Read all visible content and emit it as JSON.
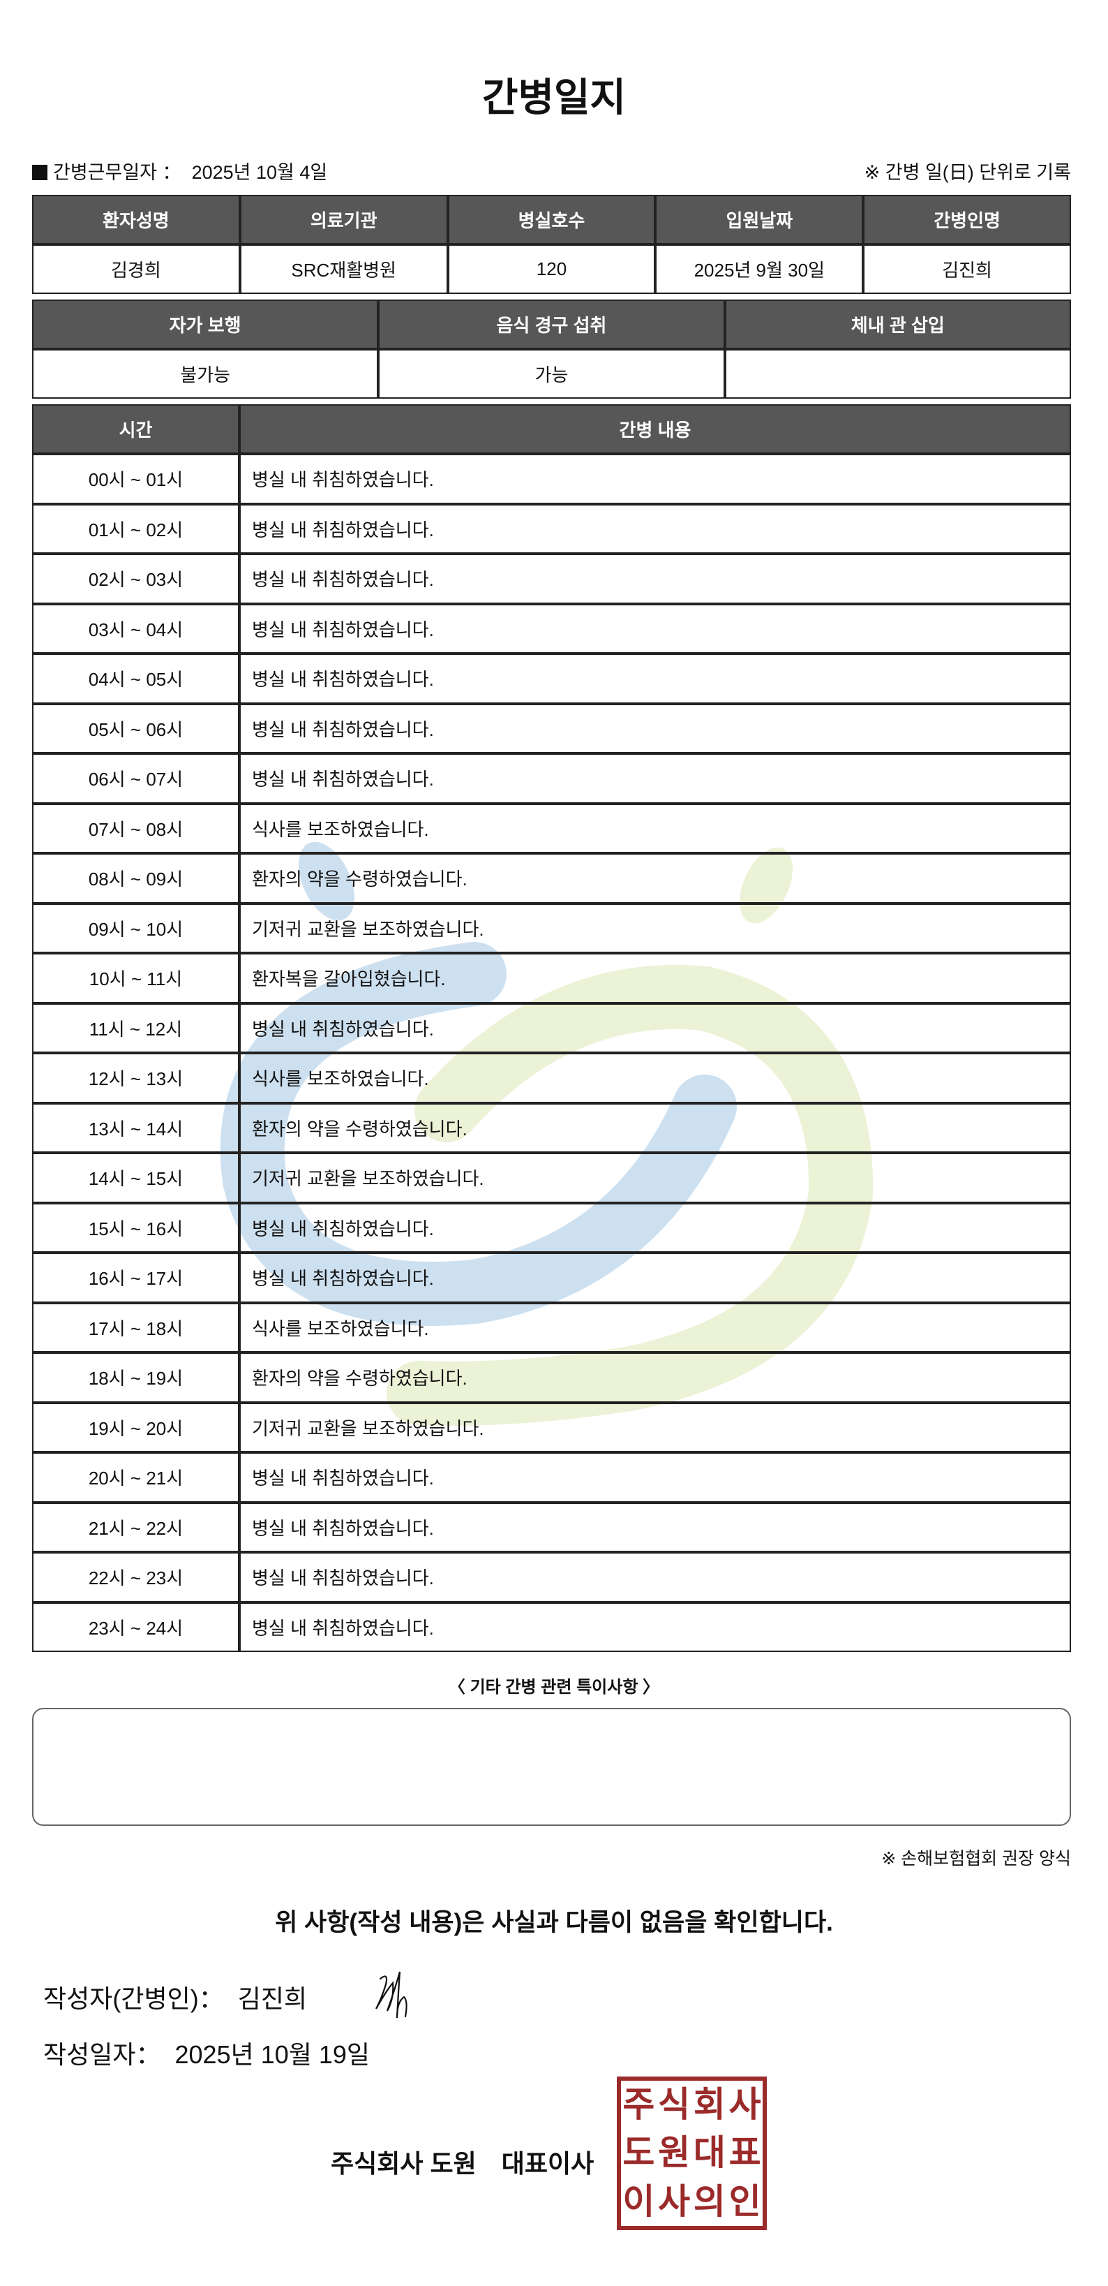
{
  "title": "간병일지",
  "work_date_label": "간병근무일자 ：",
  "work_date": "2025년 10월 4일",
  "record_note": "※ 간병 일(日) 단위로 기록",
  "info_table": {
    "headers": [
      "환자성명",
      "의료기관",
      "병실호수",
      "입원날짜",
      "간병인명"
    ],
    "values": [
      "김경희",
      "SRC재활병원",
      "120",
      "2025년 9월 30일",
      "김진희"
    ]
  },
  "status_table": {
    "headers": [
      "자가 보행",
      "음식 경구 섭취",
      "체내 관 삽입"
    ],
    "values": [
      "불가능",
      "가능",
      ""
    ]
  },
  "log_table": {
    "headers": [
      "시간",
      "간병 내용"
    ],
    "rows": [
      [
        "00시 ~ 01시",
        "병실 내 취침하였습니다."
      ],
      [
        "01시 ~ 02시",
        "병실 내 취침하였습니다."
      ],
      [
        "02시 ~ 03시",
        "병실 내 취침하였습니다."
      ],
      [
        "03시 ~ 04시",
        "병실 내 취침하였습니다."
      ],
      [
        "04시 ~ 05시",
        "병실 내 취침하였습니다."
      ],
      [
        "05시 ~ 06시",
        "병실 내 취침하였습니다."
      ],
      [
        "06시 ~ 07시",
        "병실 내 취침하였습니다."
      ],
      [
        "07시 ~ 08시",
        "식사를 보조하였습니다."
      ],
      [
        "08시 ~ 09시",
        "환자의 약을 수령하였습니다."
      ],
      [
        "09시 ~ 10시",
        "기저귀 교환을 보조하였습니다."
      ],
      [
        "10시 ~ 11시",
        "환자복을 갈아입혔습니다."
      ],
      [
        "11시 ~ 12시",
        "병실 내 취침하였습니다."
      ],
      [
        "12시 ~ 13시",
        "식사를 보조하였습니다."
      ],
      [
        "13시 ~ 14시",
        "환자의 약을 수령하였습니다."
      ],
      [
        "14시 ~ 15시",
        "기저귀 교환을 보조하였습니다."
      ],
      [
        "15시 ~ 16시",
        "병실 내 취침하였습니다."
      ],
      [
        "16시 ~ 17시",
        "병실 내 취침하였습니다."
      ],
      [
        "17시 ~ 18시",
        "식사를 보조하였습니다."
      ],
      [
        "18시 ~ 19시",
        "환자의 약을 수령하였습니다."
      ],
      [
        "19시 ~ 20시",
        "기저귀 교환을 보조하였습니다."
      ],
      [
        "20시 ~ 21시",
        "병실 내 취침하였습니다."
      ],
      [
        "21시 ~ 22시",
        "병실 내 취침하였습니다."
      ],
      [
        "22시 ~ 23시",
        "병실 내 취침하였습니다."
      ],
      [
        "23시 ~ 24시",
        "병실 내 취침하였습니다."
      ]
    ]
  },
  "notes_title": "〈 기타 간병 관련 특이사항 〉",
  "notes": "",
  "recommended_form": "※ 손해보험협회 권장 양식",
  "confirm_statement": "위 사항(작성 내용)은 사실과 다름이 없음을 확인합니다.",
  "writer_label": "작성자(간병인)：",
  "writer_name": "김진희",
  "written_date_label": "작성일자：",
  "written_date": "2025년 10월 19일",
  "company": "주식회사 도원　대표이사",
  "seal_chars": [
    "주",
    "식",
    "회",
    "사",
    "도",
    "원",
    "대",
    "표",
    "이",
    "사",
    "의",
    "인"
  ],
  "colors": {
    "header_bg": "#575757",
    "seal": "#9b2a2a",
    "watermark_blue": "#c9dff0",
    "watermark_green": "#eaf1d2"
  }
}
